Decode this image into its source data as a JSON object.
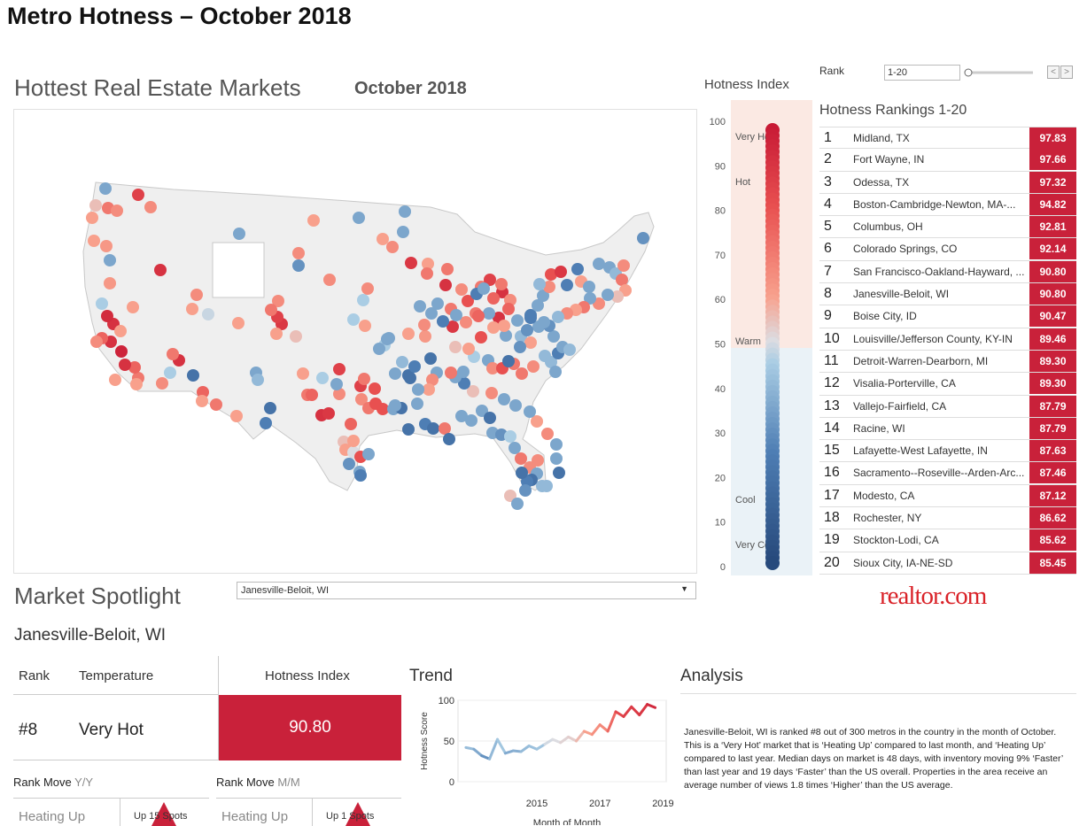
{
  "page_title": "Metro Hotness – October 2018",
  "map": {
    "title": "Hottest Real Estate Markets",
    "subtitle": "October 2018"
  },
  "index_scale": {
    "title": "Hotness Index",
    "ticks": [
      "100",
      "90",
      "80",
      "70",
      "60",
      "50",
      "40",
      "30",
      "20",
      "10",
      "0"
    ],
    "zones": [
      "Very Hot",
      "Hot",
      "Warm",
      "Cool",
      "Very Cool"
    ]
  },
  "rank_filter": {
    "label": "Rank",
    "value": "1-20",
    "prev": "<",
    "next": ">"
  },
  "rankings": {
    "title": "Hotness Rankings 1-20",
    "rows": [
      {
        "rank": "1",
        "name": "Midland, TX",
        "value": "97.83"
      },
      {
        "rank": "2",
        "name": "Fort Wayne, IN",
        "value": "97.66"
      },
      {
        "rank": "3",
        "name": "Odessa, TX",
        "value": "97.32"
      },
      {
        "rank": "4",
        "name": "Boston-Cambridge-Newton, MA-...",
        "value": "94.82"
      },
      {
        "rank": "5",
        "name": "Columbus, OH",
        "value": "92.81"
      },
      {
        "rank": "6",
        "name": "Colorado Springs, CO",
        "value": "92.14"
      },
      {
        "rank": "7",
        "name": "San Francisco-Oakland-Hayward, ...",
        "value": "90.80"
      },
      {
        "rank": "8",
        "name": "Janesville-Beloit, WI",
        "value": "90.80"
      },
      {
        "rank": "9",
        "name": "Boise City, ID",
        "value": "90.47"
      },
      {
        "rank": "10",
        "name": "Louisville/Jefferson County, KY-IN",
        "value": "89.46"
      },
      {
        "rank": "11",
        "name": "Detroit-Warren-Dearborn, MI",
        "value": "89.30"
      },
      {
        "rank": "12",
        "name": "Visalia-Porterville, CA",
        "value": "89.30"
      },
      {
        "rank": "13",
        "name": "Vallejo-Fairfield, CA",
        "value": "87.79"
      },
      {
        "rank": "14",
        "name": "Racine, WI",
        "value": "87.79"
      },
      {
        "rank": "15",
        "name": "Lafayette-West Lafayette, IN",
        "value": "87.63"
      },
      {
        "rank": "16",
        "name": "Sacramento--Roseville--Arden-Arc...",
        "value": "87.46"
      },
      {
        "rank": "17",
        "name": "Modesto, CA",
        "value": "87.12"
      },
      {
        "rank": "18",
        "name": "Rochester, NY",
        "value": "86.62"
      },
      {
        "rank": "19",
        "name": "Stockton-Lodi, CA",
        "value": "85.62"
      },
      {
        "rank": "20",
        "name": "Sioux City, IA-NE-SD",
        "value": "85.45"
      }
    ]
  },
  "logo": "realtor.com",
  "spotlight": {
    "title": "Market Spotlight",
    "selected": "Janesville-Beloit, WI",
    "subtitle": "Janesville-Beloit, WI",
    "rank_header": "Rank",
    "temp_header": "Temperature",
    "index_header": "Hotness Index",
    "rank": "#8",
    "temperature": "Very Hot",
    "index": "90.80",
    "move_yy_label": "Rank Move",
    "move_yy_unit": "Y/Y",
    "move_mm_label": "Rank Move",
    "move_mm_unit": "M/M",
    "yy_status": "Heating Up",
    "yy_spots": "Up 15 Spots",
    "mm_status": "Heating Up",
    "mm_spots": "Up 1 Spots"
  },
  "trend": {
    "title": "Trend",
    "ylabel": "Hotness Score",
    "xlabel": "Month of Month",
    "yticks": [
      "100",
      "50",
      "0"
    ],
    "xticks": [
      "2015",
      "2017",
      "2019"
    ]
  },
  "analysis": {
    "title": "Analysis",
    "text": "Janesville-Beloit, WI is ranked #8 out of 300 metros in the country in the month of October. This is a ‘Very Hot’ market that is ‘Heating Up’ compared to last month, and ‘Heating Up’ compared to last year.  Median days on market is 48 days, with inventory moving 9% ‘Faster’ than last year and 19 days ‘Faster’ than the US overall. Properties in the area receive an average number of views 1.8 times ‘Higher’ than the US average."
  },
  "colors": {
    "hot": "#c9213a",
    "cool": "#2f5f94",
    "warm_bg": "#fbe9e3",
    "cool_bg": "#eaf2f7"
  },
  "chart_data": {
    "type": "line",
    "title": "",
    "xlabel": "Month of Month",
    "ylabel": "Hotness Score",
    "ylim": [
      0,
      100
    ],
    "x": [
      2012.75,
      2013.0,
      2013.25,
      2013.5,
      2013.75,
      2014.0,
      2014.25,
      2014.5,
      2014.75,
      2015.0,
      2015.25,
      2015.5,
      2015.75,
      2016.0,
      2016.25,
      2016.5,
      2016.75,
      2017.0,
      2017.25,
      2017.5,
      2017.75,
      2018.0,
      2018.25,
      2018.5,
      2018.75
    ],
    "series": [
      {
        "values": [
          42,
          40,
          32,
          28,
          52,
          35,
          38,
          37,
          44,
          40,
          46,
          52,
          48,
          55,
          50,
          62,
          58,
          70,
          62,
          86,
          80,
          92,
          82,
          95,
          91
        ]
      }
    ]
  }
}
